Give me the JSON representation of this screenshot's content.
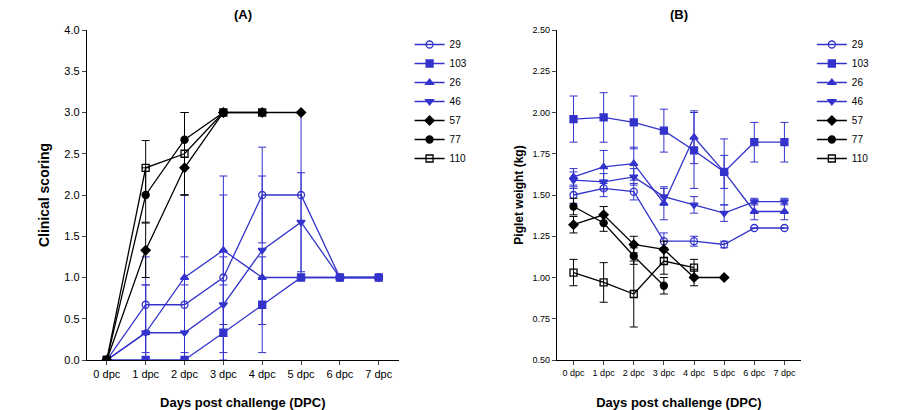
{
  "chart_data": [
    {
      "type": "line",
      "title": "(A)",
      "x_label": "Days post challenge (DPC)",
      "y_label": "Clinical scoring",
      "categories": [
        "0 dpc",
        "1 dpc",
        "2 dpc",
        "3 dpc",
        "4 dpc",
        "5 dpc",
        "6 dpc",
        "7 dpc"
      ],
      "ylim": [
        0,
        4
      ],
      "yticks": [
        {
          "value": 0,
          "label": "0.0"
        },
        {
          "value": 0.5,
          "label": "0.5"
        },
        {
          "value": 1,
          "label": "1.0"
        },
        {
          "value": 1.5,
          "label": "1.5"
        },
        {
          "value": 2,
          "label": "2.0"
        },
        {
          "value": 2.5,
          "label": "2.5"
        },
        {
          "value": 3,
          "label": "3.0"
        },
        {
          "value": 3.5,
          "label": "3.5"
        },
        {
          "value": 4,
          "label": "4.0"
        }
      ],
      "grid": false,
      "legend": "top right",
      "series": [
        {
          "name": "29",
          "color": "#3333cc",
          "marker": "circle-open",
          "values": [
            0,
            0.67,
            0.67,
            1.0,
            2.0,
            2.0,
            1.0,
            1.0
          ],
          "errors": [
            0,
            0.58,
            0.58,
            1.0,
            0.58,
            1.0,
            0,
            0
          ]
        },
        {
          "name": "103",
          "color": "#3333cc",
          "marker": "square",
          "values": [
            0,
            0,
            0,
            0.33,
            0.67,
            1.0,
            1.0,
            1.0
          ],
          "errors": [
            0,
            0,
            0,
            0.58,
            0.58,
            0,
            0,
            0
          ]
        },
        {
          "name": "26",
          "color": "#3333cc",
          "marker": "triangle-up",
          "values": [
            0,
            0.33,
            1.0,
            1.33,
            1.0,
            1.0,
            1.0,
            1.0
          ],
          "errors": [
            0,
            0.58,
            1.0,
            0.9,
            0,
            0,
            0,
            0
          ]
        },
        {
          "name": "46",
          "color": "#3333cc",
          "marker": "triangle-down",
          "values": [
            0,
            0.33,
            0.33,
            0.67,
            1.33,
            1.67,
            1.0,
            1.0
          ],
          "errors": [
            0,
            0.58,
            0.58,
            0.58,
            0.9,
            0.6,
            0,
            0
          ]
        },
        {
          "name": "57",
          "color": "#000000",
          "marker": "diamond",
          "values": [
            0,
            1.33,
            2.33,
            3.0,
            3.0,
            3.0,
            null,
            null
          ],
          "errors": [
            0,
            0.33,
            0.33,
            0,
            0,
            0,
            null,
            null
          ]
        },
        {
          "name": "77",
          "color": "#000000",
          "marker": "circle",
          "values": [
            0,
            2.0,
            2.67,
            3.0,
            null,
            null,
            null,
            null
          ],
          "errors": [
            0,
            0.33,
            0.33,
            0,
            null,
            null,
            null,
            null
          ]
        },
        {
          "name": "110",
          "color": "#000000",
          "marker": "square-open",
          "values": [
            0,
            2.33,
            2.5,
            3.0,
            3.0,
            null,
            null,
            null
          ],
          "errors": [
            0,
            0.33,
            0.5,
            0,
            0,
            null,
            null,
            null
          ]
        }
      ]
    },
    {
      "type": "line",
      "title": "(B)",
      "x_label": "Days post challenge (DPC)",
      "y_label": "Piglet weight (kg)",
      "categories": [
        "0 dpc",
        "1 dpc",
        "2 dpc",
        "3 dpc",
        "4 dpc",
        "5 dpc",
        "6 dpc",
        "7 dpc"
      ],
      "ylim": [
        0.5,
        2.5
      ],
      "yticks": [
        {
          "value": 0.5,
          "label": "0.50"
        },
        {
          "value": 0.75,
          "label": "0.75"
        },
        {
          "value": 1,
          "label": "1.00"
        },
        {
          "value": 1.25,
          "label": "1.25"
        },
        {
          "value": 1.5,
          "label": "1.50"
        },
        {
          "value": 1.75,
          "label": "1.75"
        },
        {
          "value": 2,
          "label": "2.00"
        },
        {
          "value": 2.25,
          "label": "2.25"
        },
        {
          "value": 2.5,
          "label": "2.50"
        }
      ],
      "grid": false,
      "legend": "top right",
      "series": [
        {
          "name": "29",
          "color": "#3333cc",
          "marker": "circle-open",
          "values": [
            1.5,
            1.54,
            1.52,
            1.22,
            1.22,
            1.2,
            1.3,
            1.3
          ],
          "errors": [
            0.05,
            0.05,
            0.05,
            0.05,
            0.03,
            0.02,
            0,
            0
          ]
        },
        {
          "name": "103",
          "color": "#3333cc",
          "marker": "square",
          "values": [
            1.96,
            1.97,
            1.94,
            1.89,
            1.77,
            1.64,
            1.82,
            1.82
          ],
          "errors": [
            0.14,
            0.15,
            0.16,
            0.13,
            0.23,
            0.2,
            0.12,
            0.12
          ]
        },
        {
          "name": "26",
          "color": "#3333cc",
          "marker": "triangle-up",
          "values": [
            1.61,
            1.67,
            1.69,
            1.45,
            1.85,
            1.64,
            1.4,
            1.4
          ],
          "errors": [
            0.05,
            0.1,
            0.1,
            0.1,
            0.16,
            0.1,
            0.05,
            0.05
          ]
        },
        {
          "name": "46",
          "color": "#3333cc",
          "marker": "triangle-down",
          "values": [
            1.59,
            1.58,
            1.61,
            1.49,
            1.44,
            1.39,
            1.46,
            1.46
          ],
          "errors": [
            0.05,
            0.05,
            0.05,
            0.05,
            0.05,
            0.05,
            0.02,
            0.02
          ]
        },
        {
          "name": "57",
          "color": "#000000",
          "marker": "diamond",
          "values": [
            1.32,
            1.38,
            1.2,
            1.17,
            1.0,
            1.0,
            null,
            null
          ],
          "errors": [
            0.05,
            0.05,
            0.05,
            0.05,
            0.05,
            0,
            null,
            null
          ]
        },
        {
          "name": "77",
          "color": "#000000",
          "marker": "circle",
          "values": [
            1.43,
            1.33,
            1.13,
            0.95,
            null,
            null,
            null,
            null
          ],
          "errors": [
            0.05,
            0.05,
            0.05,
            0.05,
            null,
            null,
            null,
            null
          ]
        },
        {
          "name": "110",
          "color": "#000000",
          "marker": "square-open",
          "values": [
            1.03,
            0.97,
            0.9,
            1.1,
            1.06,
            null,
            null,
            null
          ],
          "errors": [
            0.08,
            0.12,
            0.2,
            0.08,
            0.05,
            null,
            null,
            null
          ]
        }
      ]
    }
  ]
}
